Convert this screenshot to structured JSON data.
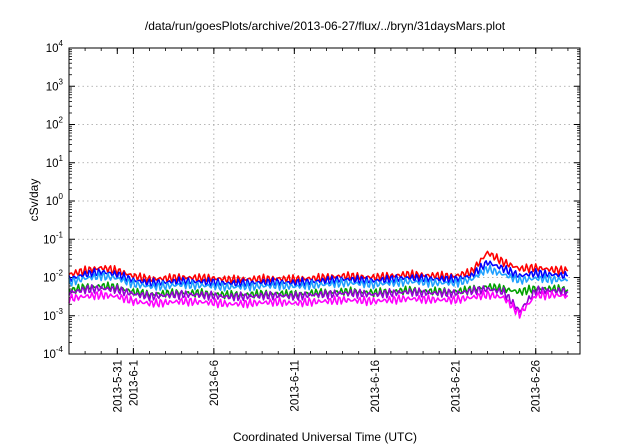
{
  "chart_data": {
    "type": "line",
    "title": "/data/run/goesPlots/archive/2013-06-27/flux/../bryn/31daysMars.plot",
    "xlabel": "Coordinated Universal Time (UTC)",
    "ylabel": "cSv/day",
    "y_scale": "log",
    "ylim": [
      0.0001,
      10000
    ],
    "y_ticks": [
      {
        "value": 0.0001,
        "base": "10",
        "exp": "-4"
      },
      {
        "value": 0.001,
        "base": "10",
        "exp": "-3"
      },
      {
        "value": 0.01,
        "base": "10",
        "exp": "-2"
      },
      {
        "value": 0.1,
        "base": "10",
        "exp": "-1"
      },
      {
        "value": 1,
        "base": "10",
        "exp": "0"
      },
      {
        "value": 10,
        "base": "10",
        "exp": "1"
      },
      {
        "value": 100,
        "base": "10",
        "exp": "2"
      },
      {
        "value": 1000,
        "base": "10",
        "exp": "3"
      },
      {
        "value": 10000,
        "base": "10",
        "exp": "4"
      }
    ],
    "xlim": [
      "2013-05-28",
      "2013-06-28 18:00"
    ],
    "x_ticks": [
      "2013-5-31",
      "2013-6-1",
      "2013-6-6",
      "2013-6-11",
      "2013-6-16",
      "2013-6-21",
      "2013-6-26"
    ],
    "x_tick_dates": [
      "2013-05-31",
      "2013-06-01",
      "2013-06-06",
      "2013-06-11",
      "2013-06-16",
      "2013-06-21",
      "2013-06-26"
    ],
    "grid": true,
    "legend": "none",
    "x": [
      "2013-05-28",
      "2013-05-29",
      "2013-05-30",
      "2013-05-31",
      "2013-06-01",
      "2013-06-02",
      "2013-06-03",
      "2013-06-04",
      "2013-06-05",
      "2013-06-06",
      "2013-06-07",
      "2013-06-08",
      "2013-06-09",
      "2013-06-10",
      "2013-06-11",
      "2013-06-12",
      "2013-06-13",
      "2013-06-14",
      "2013-06-15",
      "2013-06-16",
      "2013-06-17",
      "2013-06-18",
      "2013-06-19",
      "2013-06-20",
      "2013-06-21",
      "2013-06-22",
      "2013-06-23",
      "2013-06-24",
      "2013-06-25",
      "2013-06-26",
      "2013-06-27",
      "2013-06-28"
    ],
    "series": [
      {
        "color": "#ff0000",
        "values": [
          0.012,
          0.015,
          0.018,
          0.015,
          0.011,
          0.009,
          0.0095,
          0.01,
          0.0098,
          0.0095,
          0.0088,
          0.009,
          0.0092,
          0.0094,
          0.009,
          0.0095,
          0.01,
          0.011,
          0.0105,
          0.01,
          0.011,
          0.012,
          0.0115,
          0.011,
          0.011,
          0.014,
          0.045,
          0.025,
          0.017,
          0.018,
          0.016,
          0.015
        ]
      },
      {
        "color": "#0000ff",
        "values": [
          0.009,
          0.012,
          0.014,
          0.012,
          0.0085,
          0.0072,
          0.0075,
          0.008,
          0.0078,
          0.0075,
          0.007,
          0.0072,
          0.0074,
          0.0076,
          0.0072,
          0.0078,
          0.0082,
          0.009,
          0.0086,
          0.0082,
          0.009,
          0.0098,
          0.0094,
          0.009,
          0.009,
          0.011,
          0.025,
          0.017,
          0.011,
          0.013,
          0.012,
          0.011
        ]
      },
      {
        "color": "#1fa0ff",
        "values": [
          0.0075,
          0.0095,
          0.011,
          0.0095,
          0.0068,
          0.0058,
          0.006,
          0.0065,
          0.0062,
          0.006,
          0.0056,
          0.0058,
          0.006,
          0.0062,
          0.0058,
          0.0063,
          0.0066,
          0.0072,
          0.007,
          0.0066,
          0.0072,
          0.0078,
          0.0075,
          0.0072,
          0.0072,
          0.0088,
          0.017,
          0.012,
          0.0085,
          0.0095,
          0.009,
          0.0085
        ]
      },
      {
        "color": "#00a000",
        "values": [
          0.0045,
          0.0055,
          0.006,
          0.0055,
          0.0042,
          0.0036,
          0.0038,
          0.004,
          0.0039,
          0.0037,
          0.0035,
          0.0036,
          0.0037,
          0.0038,
          0.0036,
          0.0039,
          0.004,
          0.0043,
          0.0042,
          0.004,
          0.0043,
          0.0046,
          0.0044,
          0.0043,
          0.0043,
          0.0048,
          0.0058,
          0.005,
          0.0042,
          0.0052,
          0.005,
          0.0048
        ]
      },
      {
        "color": "#9400d3",
        "values": [
          0.004,
          0.0048,
          0.0052,
          0.0048,
          0.0037,
          0.0032,
          0.0034,
          0.0036,
          0.0035,
          0.0033,
          0.0031,
          0.0032,
          0.0033,
          0.0034,
          0.0032,
          0.0035,
          0.0036,
          0.0039,
          0.0038,
          0.0036,
          0.0039,
          0.0042,
          0.004,
          0.0039,
          0.0039,
          0.0044,
          0.005,
          0.0042,
          0.0013,
          0.0046,
          0.0045,
          0.0043
        ]
      },
      {
        "color": "#ff00ff",
        "values": [
          0.0028,
          0.0032,
          0.0035,
          0.0032,
          0.0024,
          0.0021,
          0.0022,
          0.0024,
          0.0023,
          0.0022,
          0.002,
          0.0021,
          0.0022,
          0.0023,
          0.0021,
          0.0023,
          0.0024,
          0.0026,
          0.0025,
          0.0024,
          0.0026,
          0.0028,
          0.0027,
          0.0026,
          0.0026,
          0.003,
          0.0036,
          0.003,
          0.0011,
          0.0034,
          0.0035,
          0.0033
        ]
      }
    ]
  }
}
